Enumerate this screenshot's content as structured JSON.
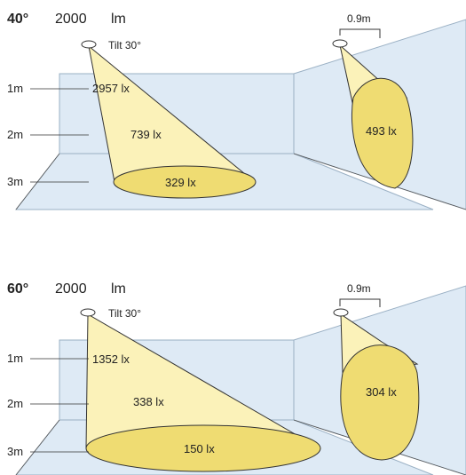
{
  "panels": [
    {
      "beam": "40°",
      "lumens": "2000",
      "lumens_unit": "lm",
      "tilt": "Tilt 30°",
      "offset": "0.9m",
      "heights": [
        "1m",
        "2m",
        "3m"
      ],
      "lux_floor": [
        "2957 lx",
        "739 lx",
        "329 lx"
      ],
      "lux_wall": "493 lx"
    },
    {
      "beam": "60°",
      "lumens": "2000",
      "lumens_unit": "lm",
      "tilt": "Tilt 30°",
      "offset": "0.9m",
      "heights": [
        "1m",
        "2m",
        "3m"
      ],
      "lux_floor": [
        "1352 lx",
        "338 lx",
        "150 lx"
      ],
      "lux_wall": "304 lx"
    }
  ],
  "colors": {
    "room": "#deeaf5",
    "room_stroke": "#9ab0c4",
    "cone": "#fbf2b9",
    "spot": "#efdc72",
    "outline": "#333333"
  }
}
